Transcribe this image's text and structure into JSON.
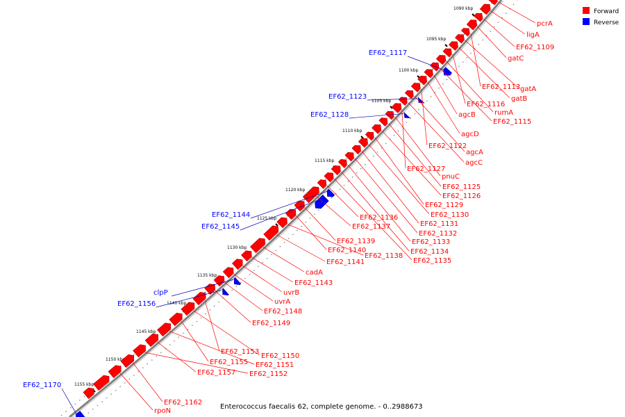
{
  "caption": "Enterococcus faecalis 62, complete genome. - 0..2988673",
  "legend": [
    {
      "label": "Forward",
      "color": "#ff0000"
    },
    {
      "label": "Reverse",
      "color": "#0000ff"
    }
  ],
  "colors": {
    "forward": "#ff0000",
    "reverse": "#0000ff",
    "backbone": "#808080",
    "leader_fwd": "#ff0000",
    "leader_rev": "#0000aa"
  },
  "ticks": [
    "1090 kbp",
    "1095 kbp",
    "1100 kbp",
    "1105 kbp",
    "1110 kbp",
    "1115 kbp",
    "1120 kbp",
    "1125 kbp",
    "1130 kbp",
    "1135 kbp",
    "1140 kbp",
    "1145 kbp",
    "1150 kbp",
    "1155 kbp"
  ],
  "forward_labels": [
    "pcrA",
    "ligA",
    "EF62_1109",
    "gatC",
    "EF62_1113",
    "gatA",
    "gatB",
    "EF62_1116",
    "rumA",
    "EF62_1115",
    "agcB",
    "agcD",
    "EF62_1122",
    "agcA",
    "agcC",
    "EF62_1127",
    "pnuC",
    "EF62_1125",
    "EF62_1126",
    "EF62_1129",
    "EF62_1130",
    "EF62_1131",
    "EF62_1132",
    "EF62_1133",
    "EF62_1134",
    "EF62_1135",
    "EF62_1136",
    "EF62_1137",
    "EF62_1139",
    "EF62_1140",
    "EF62_1138",
    "EF62_1141",
    "cadA",
    "EF62_1143",
    "uvrB",
    "uvrA",
    "EF62_1148",
    "EF62_1149",
    "EF62_1153",
    "EF62_1150",
    "EF62_1155",
    "EF62_1151",
    "EF62_1157",
    "EF62_1152",
    "EF62_1162",
    "rpoN"
  ],
  "reverse_labels": [
    "EF62_1117",
    "EF62_1123",
    "EF62_1128",
    "EF62_1144",
    "EF62_1145",
    "clpP",
    "EF62_1156",
    "EF62_1170"
  ]
}
